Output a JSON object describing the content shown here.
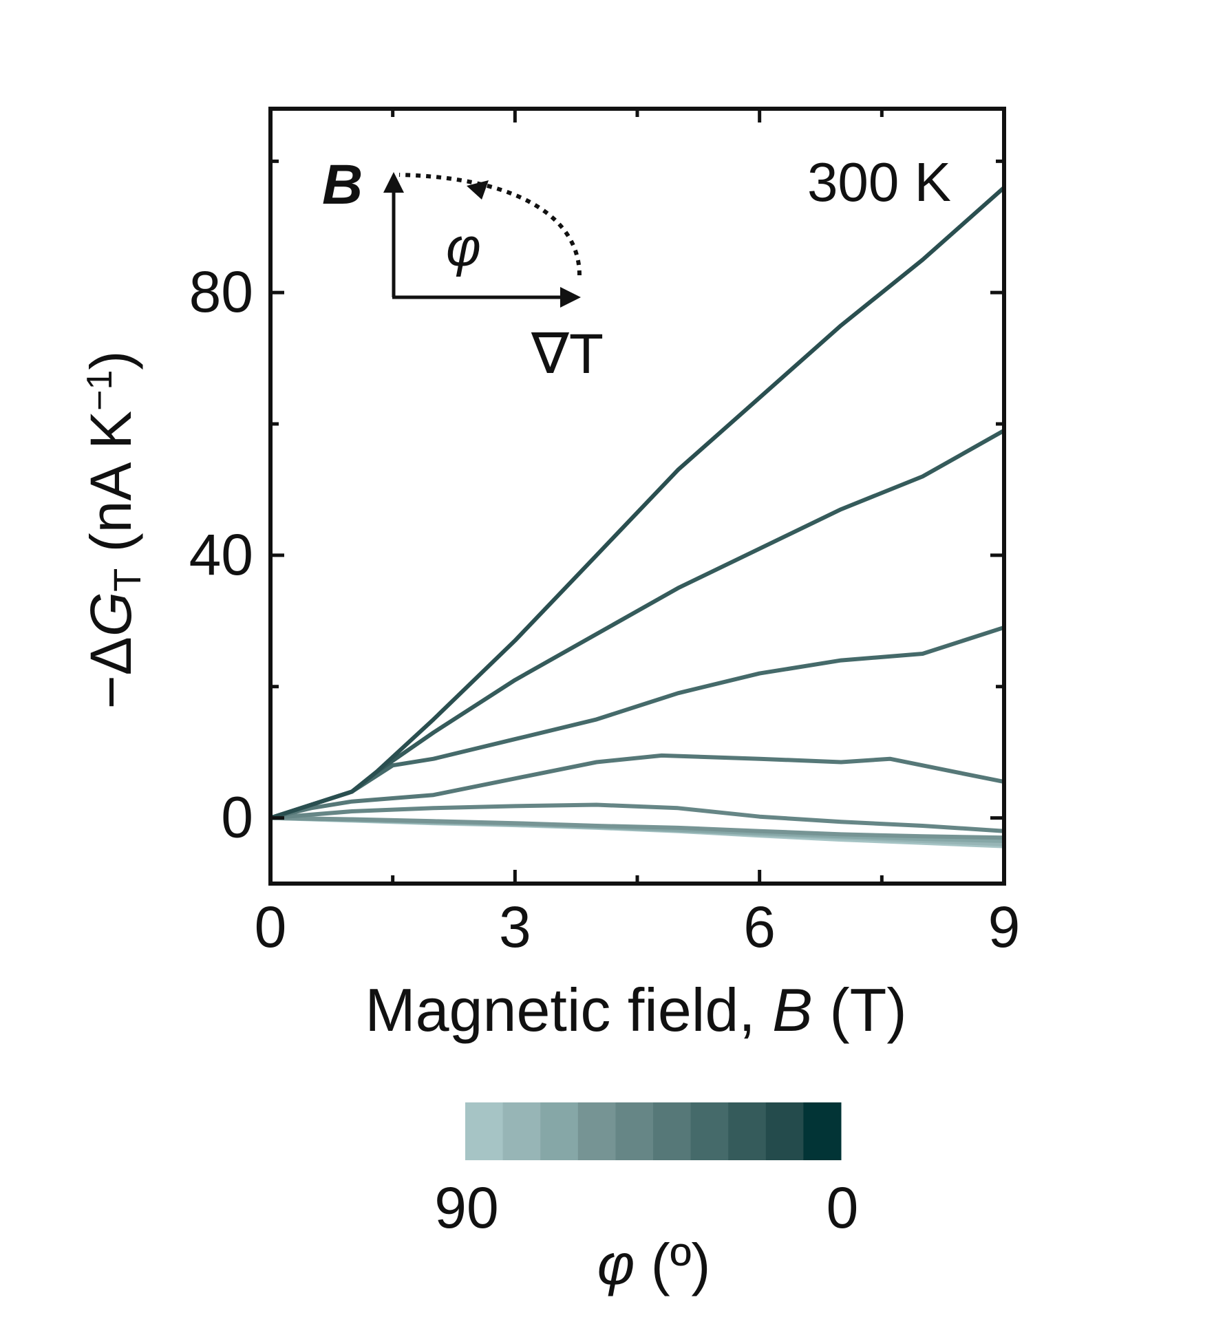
{
  "chart_data": {
    "type": "line",
    "annotation": "300 K",
    "xlabel": {
      "text": "Magnetic field, ",
      "symbol": "B",
      "unit": " (T)"
    },
    "ylabel": {
      "prefix": "−Δ",
      "symbol": "G",
      "subscript": "T",
      "unit": " (nA K",
      "exponent": "−1",
      "close": ")"
    },
    "xlim": [
      0,
      9
    ],
    "ylim": [
      -10,
      108
    ],
    "xticks": [
      0,
      3,
      6,
      9
    ],
    "xtick_labels": [
      "0",
      "3",
      "6",
      "9"
    ],
    "yticks": [
      0,
      40,
      80
    ],
    "ytick_labels": [
      "0",
      "40",
      "80"
    ],
    "inset": {
      "field_label": "B",
      "angle_label": "φ",
      "gradient_label": "∇T"
    },
    "colorbar": {
      "label_symbol": "φ",
      "label_unit": " (º)",
      "left_label": "90",
      "right_label": "0",
      "colors": [
        "#a6c4c5",
        "#97b5b6",
        "#86a7a7",
        "#769494",
        "#668686",
        "#567878",
        "#456a6a",
        "#355b5b",
        "#244b4c",
        "#023436"
      ]
    },
    "series": [
      {
        "color": "#2a4f50",
        "x": [
          0,
          0.5,
          1.0,
          1.3,
          2.0,
          3.0,
          4.0,
          5.0,
          6.0,
          7.0,
          8.0,
          9.0
        ],
        "values": [
          0,
          2,
          4,
          7,
          15,
          27,
          40,
          53,
          64,
          75,
          85,
          96
        ]
      },
      {
        "color": "#355b5b",
        "x": [
          0,
          0.5,
          1.0,
          1.3,
          2.0,
          3.0,
          4.0,
          5.0,
          6.0,
          7.0,
          8.0,
          9.0
        ],
        "values": [
          0,
          2,
          4,
          7,
          13,
          21,
          28,
          35,
          41,
          47,
          52,
          59
        ]
      },
      {
        "color": "#456a6a",
        "x": [
          0,
          0.5,
          1.0,
          1.5,
          2.0,
          3.0,
          4.0,
          5.0,
          6.0,
          7.0,
          8.0,
          9.0
        ],
        "values": [
          0,
          2,
          4,
          8,
          9,
          12,
          15,
          19,
          22,
          24,
          25,
          29
        ]
      },
      {
        "color": "#567878",
        "x": [
          0,
          0.5,
          1.0,
          2.0,
          3.0,
          4.0,
          4.8,
          6.0,
          7.0,
          7.6,
          8.4,
          9.0
        ],
        "values": [
          0,
          1.5,
          2.5,
          3.5,
          6,
          8.5,
          9.5,
          9,
          8.5,
          9,
          7,
          5.5
        ]
      },
      {
        "color": "#668686",
        "x": [
          0,
          1.0,
          2.0,
          3.0,
          4.0,
          5.0,
          6.0,
          7.0,
          8.0,
          9.0
        ],
        "values": [
          0,
          1,
          1.5,
          1.8,
          2,
          1.5,
          0.2,
          -0.6,
          -1.2,
          -2
        ]
      },
      {
        "color": "#769494",
        "x": [
          0,
          1.0,
          2.0,
          3.0,
          4.0,
          5.0,
          6.0,
          7.0,
          8.0,
          9.0
        ],
        "values": [
          0,
          -0.2,
          -0.5,
          -0.8,
          -1.2,
          -1.5,
          -2.0,
          -2.5,
          -2.8,
          -3.0
        ]
      },
      {
        "color": "#86a7a7",
        "x": [
          0,
          1.0,
          2.0,
          3.0,
          4.0,
          5.0,
          6.0,
          7.0,
          8.0,
          9.0
        ],
        "values": [
          0,
          -0.3,
          -0.6,
          -0.9,
          -1.3,
          -1.8,
          -2.3,
          -2.8,
          -3.2,
          -3.5
        ]
      },
      {
        "color": "#97b5b6",
        "x": [
          0,
          1.0,
          2.0,
          3.0,
          4.0,
          5.0,
          6.0,
          7.0,
          8.0,
          9.0
        ],
        "values": [
          0,
          -0.3,
          -0.7,
          -1.0,
          -1.4,
          -1.9,
          -2.5,
          -3.0,
          -3.5,
          -4.0
        ]
      },
      {
        "color": "#a6c4c5",
        "x": [
          0,
          1.0,
          2.0,
          3.0,
          4.0,
          5.0,
          6.0,
          7.0,
          8.0,
          9.0
        ],
        "values": [
          0,
          -0.4,
          -0.8,
          -1.1,
          -1.5,
          -2.0,
          -2.7,
          -3.3,
          -3.8,
          -4.3
        ]
      }
    ]
  }
}
